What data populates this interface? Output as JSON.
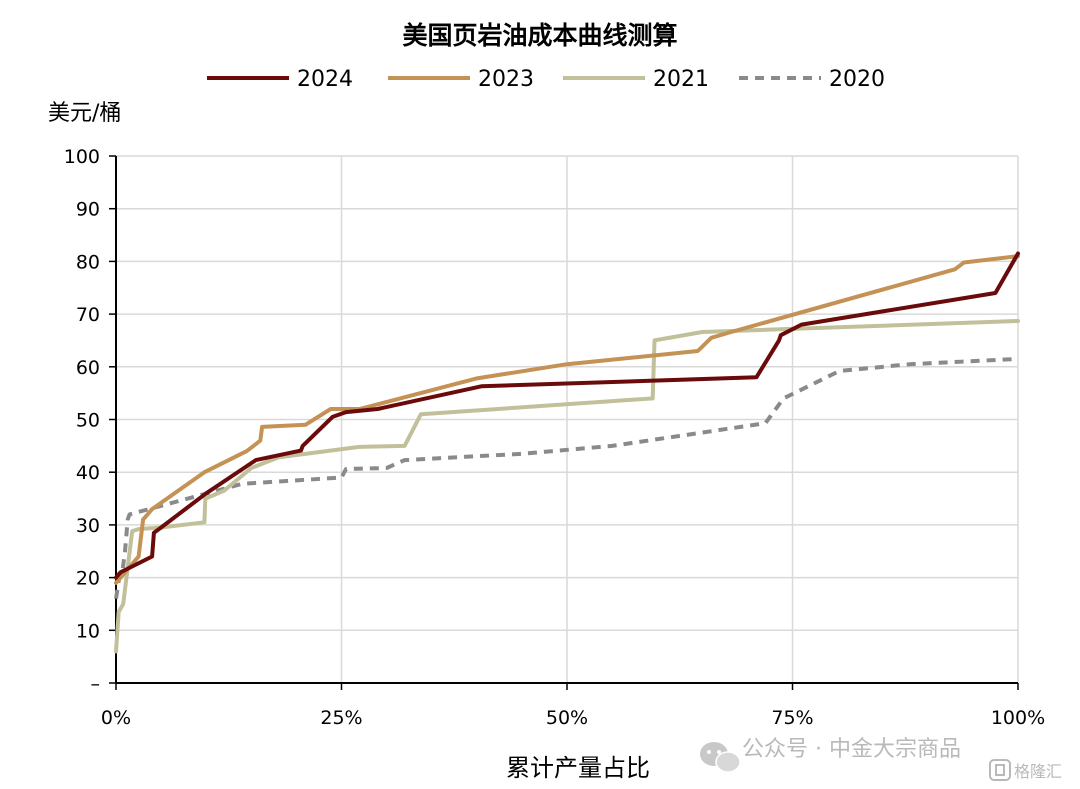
{
  "chart_data": {
    "type": "line",
    "title": "美国页岩油成本曲线测算",
    "ylabel": "美元/桶",
    "xlabel": "累计产量占比",
    "ylim": [
      0,
      100
    ],
    "xlim": [
      0,
      100
    ],
    "yticks": [
      {
        "value": 0,
        "label": "–"
      },
      {
        "value": 10,
        "label": "10"
      },
      {
        "value": 20,
        "label": "20"
      },
      {
        "value": 30,
        "label": "30"
      },
      {
        "value": 40,
        "label": "40"
      },
      {
        "value": 50,
        "label": "50"
      },
      {
        "value": 60,
        "label": "60"
      },
      {
        "value": 70,
        "label": "70"
      },
      {
        "value": 80,
        "label": "80"
      },
      {
        "value": 90,
        "label": "90"
      },
      {
        "value": 100,
        "label": "100"
      }
    ],
    "xticks": [
      {
        "value": 0,
        "label": "0%"
      },
      {
        "value": 25,
        "label": "25%"
      },
      {
        "value": 50,
        "label": "50%"
      },
      {
        "value": 75,
        "label": "75%"
      },
      {
        "value": 100,
        "label": "100%"
      }
    ],
    "grid": true,
    "legend_position": "top",
    "series": [
      {
        "name": "2024",
        "color": "#6b0a0a",
        "dash": "solid",
        "points": [
          [
            0,
            20
          ],
          [
            0.5,
            21
          ],
          [
            4,
            24
          ],
          [
            4.2,
            28.5
          ],
          [
            5,
            29.5
          ],
          [
            10,
            36
          ],
          [
            15.5,
            42.3
          ],
          [
            20.5,
            44.1
          ],
          [
            20.7,
            45
          ],
          [
            24,
            50.5
          ],
          [
            25.5,
            51.4
          ],
          [
            29,
            52
          ],
          [
            40.5,
            56.3
          ],
          [
            71,
            58
          ],
          [
            73.5,
            65
          ],
          [
            73.7,
            66
          ],
          [
            76,
            68
          ],
          [
            97.5,
            74
          ],
          [
            100,
            81.5
          ]
        ]
      },
      {
        "name": "2023",
        "color": "#c49254",
        "dash": "solid",
        "points": [
          [
            0,
            19
          ],
          [
            2.5,
            24
          ],
          [
            3,
            31
          ],
          [
            4,
            33
          ],
          [
            9.8,
            40
          ],
          [
            14.5,
            44
          ],
          [
            16,
            46
          ],
          [
            16.2,
            48.6
          ],
          [
            21,
            49
          ],
          [
            23.8,
            52
          ],
          [
            27,
            52
          ],
          [
            40,
            57.8
          ],
          [
            50,
            60.5
          ],
          [
            64.5,
            63
          ],
          [
            66,
            65.5
          ],
          [
            68,
            66.5
          ],
          [
            93,
            78.5
          ],
          [
            94,
            79.8
          ],
          [
            100,
            81
          ]
        ]
      },
      {
        "name": "2021",
        "color": "#c2c09b",
        "dash": "solid",
        "points": [
          [
            0,
            6
          ],
          [
            0.3,
            13.5
          ],
          [
            0.8,
            15
          ],
          [
            1.8,
            28.8
          ],
          [
            2.5,
            29.2
          ],
          [
            5,
            29.5
          ],
          [
            9.8,
            30.5
          ],
          [
            9.9,
            35
          ],
          [
            12,
            36.5
          ],
          [
            15,
            40.8
          ],
          [
            18,
            42.8
          ],
          [
            26,
            44.6
          ],
          [
            27,
            44.8
          ],
          [
            32,
            45
          ],
          [
            33.8,
            51
          ],
          [
            59.5,
            54
          ],
          [
            59.7,
            65
          ],
          [
            65,
            66.6
          ],
          [
            100,
            68.7
          ]
        ]
      },
      {
        "name": "2020",
        "color": "#8a8a8a",
        "dash": "dashed",
        "points": [
          [
            0,
            16
          ],
          [
            0.4,
            20.5
          ],
          [
            0.7,
            21
          ],
          [
            1,
            25
          ],
          [
            1.3,
            31
          ],
          [
            1.5,
            32
          ],
          [
            14,
            37.8
          ],
          [
            25,
            39
          ],
          [
            25.5,
            40.6
          ],
          [
            30,
            40.8
          ],
          [
            32,
            42.3
          ],
          [
            45,
            43.5
          ],
          [
            55,
            45
          ],
          [
            72,
            49.3
          ],
          [
            74,
            54
          ],
          [
            80.2,
            59.2
          ],
          [
            88,
            60.5
          ],
          [
            100,
            61.5
          ]
        ]
      }
    ]
  },
  "watermark": {
    "text": "公众号 · 中金大宗商品",
    "icon": "wechat-icon",
    "corner_text": "格隆汇",
    "corner_icon": "gelonghui-logo-icon"
  }
}
